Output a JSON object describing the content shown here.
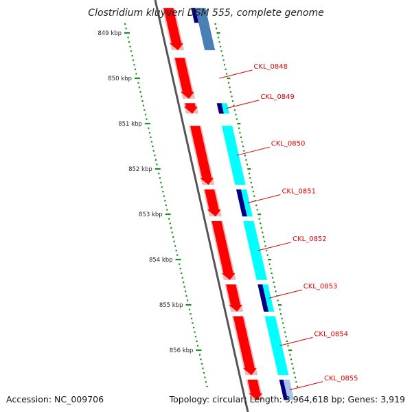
{
  "title": "Clostridium kluyveri DSM 555, complete genome",
  "accession": "Accession: NC_009706",
  "summary": "Topology: circular; Length: 3,964,618 bp; Genes: 3,919",
  "colors": {
    "cds": "#ff0000",
    "label": "#dd0000",
    "ruler": "#1a8c1a",
    "cog_cyan": "#00ffff",
    "cog_navy": "#000080",
    "cog_steel": "#4a7fb5",
    "backbone": "#777777"
  },
  "ruler": {
    "unit": "kbp",
    "ticks": [
      {
        "pos": 849,
        "label": "849 kbp"
      },
      {
        "pos": 850,
        "label": "850 kbp"
      },
      {
        "pos": 851,
        "label": "851 kbp"
      },
      {
        "pos": 852,
        "label": "852 kbp"
      },
      {
        "pos": 853,
        "label": "853 kbp"
      },
      {
        "pos": 854,
        "label": "854 kbp"
      },
      {
        "pos": 855,
        "label": "855 kbp"
      },
      {
        "pos": 856,
        "label": "856 kbp"
      }
    ]
  },
  "genes": [
    {
      "id": "",
      "start": 848.45,
      "end": 849.38,
      "cog": "steel"
    },
    {
      "id": "CKL_0848",
      "start": 849.55,
      "end": 850.45,
      "cog": "none"
    },
    {
      "id": "CKL_0849",
      "start": 850.55,
      "end": 850.78,
      "cog": "navy_cyan"
    },
    {
      "id": "CKL_0850",
      "start": 851.05,
      "end": 852.35,
      "cog": "cyan"
    },
    {
      "id": "CKL_0851",
      "start": 852.45,
      "end": 853.05,
      "cog": "navy_cyan"
    },
    {
      "id": "CKL_0852",
      "start": 853.15,
      "end": 854.45,
      "cog": "cyan"
    },
    {
      "id": "CKL_0853",
      "start": 854.55,
      "end": 855.15,
      "cog": "navy_cyan"
    },
    {
      "id": "CKL_0854",
      "start": 855.25,
      "end": 856.55,
      "cog": "cyan"
    },
    {
      "id": "CKL_0855",
      "start": 856.65,
      "end": 857.1,
      "cog": "navy_steel"
    }
  ]
}
